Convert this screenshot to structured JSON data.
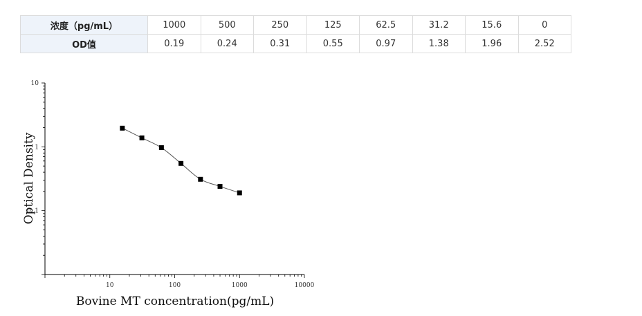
{
  "table": {
    "row_labels": [
      "浓度（pg/mL）",
      "OD值"
    ],
    "concentrations": [
      "1000",
      "500",
      "250",
      "125",
      "62.5",
      "31.2",
      "15.6",
      "0"
    ],
    "od_values": [
      "0.19",
      "0.24",
      "0.31",
      "0.55",
      "0.97",
      "1.38",
      "1.96",
      "2.52"
    ]
  },
  "chart_data": {
    "type": "scatter",
    "xlabel": "Bovine MT concentration(pg/mL)",
    "ylabel": "Optical Density",
    "x_scale": "log",
    "y_scale": "log",
    "xlim": [
      1,
      10000
    ],
    "ylim": [
      0.01,
      10
    ],
    "x_tick_labels": [
      "10",
      "100",
      "1000",
      "10000"
    ],
    "y_tick_labels": [
      "10",
      "1",
      "0. 1"
    ],
    "points": [
      {
        "x": 15.6,
        "y": 1.96
      },
      {
        "x": 31.2,
        "y": 1.38
      },
      {
        "x": 62.5,
        "y": 0.97
      },
      {
        "x": 125,
        "y": 0.55
      },
      {
        "x": 250,
        "y": 0.31
      },
      {
        "x": 500,
        "y": 0.24
      },
      {
        "x": 1000,
        "y": 0.19
      }
    ],
    "fit_curve": true,
    "grid": false,
    "colors": {
      "marker": "#000000",
      "curve": "#555555",
      "axis": "#000000"
    }
  }
}
